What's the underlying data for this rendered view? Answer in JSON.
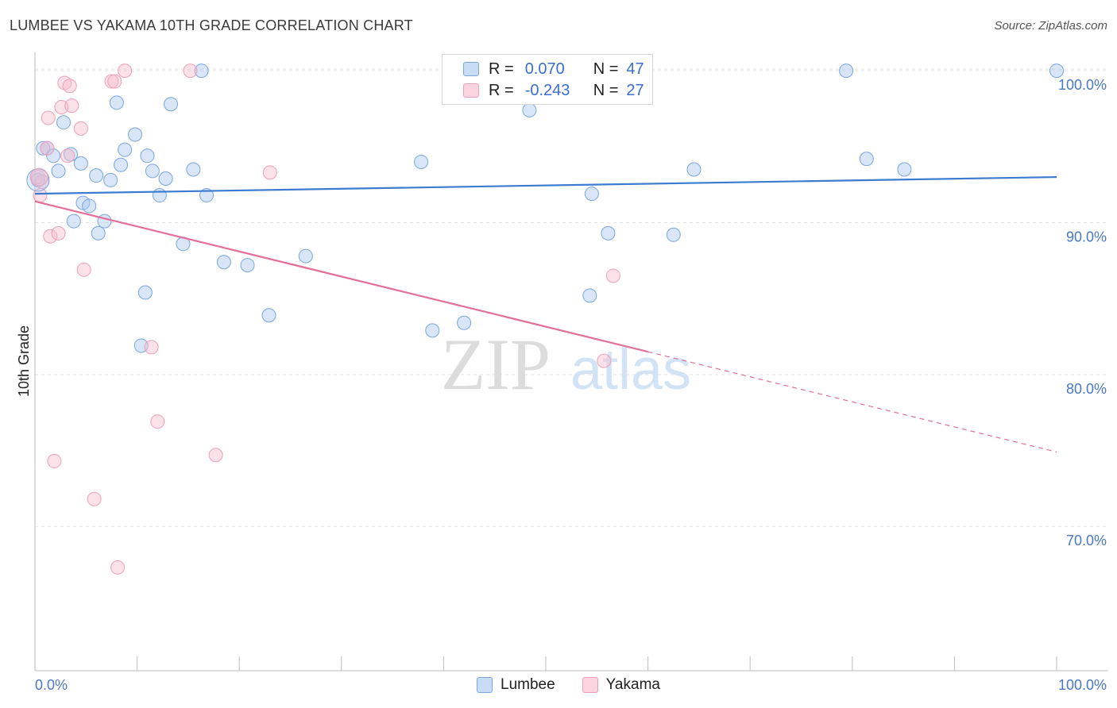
{
  "title": "LUMBEE VS YAKAMA 10TH GRADE CORRELATION CHART",
  "source": "Source: ZipAtlas.com",
  "watermark": {
    "zip": "ZIP",
    "atlas": "atlas"
  },
  "legend": {
    "rows": [
      {
        "r_label": "R =",
        "r_value": "0.070",
        "n_label": "N =",
        "n_value": "47",
        "color": "#a9c8f0"
      },
      {
        "r_label": "R =",
        "r_value": "-0.243",
        "n_label": "N =",
        "n_value": "27",
        "color": "#f7bccd"
      }
    ]
  },
  "bottom_legend": [
    {
      "label": "Lumbee",
      "color": "#a9c8f0"
    },
    {
      "label": "Yakama",
      "color": "#f7bccd"
    }
  ],
  "colors": {
    "lumbee": "#3c7bd0",
    "yakama": "#e46f99",
    "grid": "#e2e2e2",
    "tick": "#4a78c4"
  },
  "chart_data": {
    "type": "scatter",
    "title": "LUMBEE VS YAKAMA 10TH GRADE CORRELATION CHART",
    "xlabel": "",
    "ylabel": "10th Grade",
    "xlim": [
      0,
      100
    ],
    "ylim": [
      60.5,
      101
    ],
    "x_tick_labels": [
      "0.0%",
      "100.0%"
    ],
    "y_ticks": [
      70,
      80,
      90,
      100
    ],
    "y_tick_labels": [
      "70.0%",
      "80.0%",
      "90.0%",
      "100.0%"
    ],
    "grid": true,
    "legend_position": "top-center",
    "series": [
      {
        "name": "Lumbee",
        "color": "#3c7bd0",
        "trend": {
          "x": [
            0,
            100
          ],
          "y": [
            91.9,
            93.0
          ],
          "dashed_from": null
        },
        "points": [
          [
            0.3,
            92.8
          ],
          [
            0.8,
            94.9
          ],
          [
            1.2,
            94.9
          ],
          [
            1.8,
            94.4
          ],
          [
            2.3,
            93.4
          ],
          [
            2.8,
            96.6
          ],
          [
            3.5,
            94.5
          ],
          [
            3.8,
            90.1
          ],
          [
            4.5,
            93.9
          ],
          [
            4.7,
            91.3
          ],
          [
            5.3,
            91.1
          ],
          [
            6.0,
            93.1
          ],
          [
            6.2,
            89.3
          ],
          [
            6.8,
            90.1
          ],
          [
            7.4,
            92.8
          ],
          [
            8.0,
            97.9
          ],
          [
            8.4,
            93.8
          ],
          [
            8.8,
            94.8
          ],
          [
            9.8,
            95.8
          ],
          [
            10.4,
            81.9
          ],
          [
            10.8,
            85.4
          ],
          [
            11.0,
            94.4
          ],
          [
            11.5,
            93.4
          ],
          [
            12.2,
            91.8
          ],
          [
            12.8,
            92.9
          ],
          [
            13.3,
            97.8
          ],
          [
            14.5,
            88.6
          ],
          [
            15.5,
            93.5
          ],
          [
            16.3,
            100.0
          ],
          [
            16.8,
            91.8
          ],
          [
            18.5,
            87.4
          ],
          [
            20.8,
            87.2
          ],
          [
            22.9,
            83.9
          ],
          [
            26.5,
            87.8
          ],
          [
            37.8,
            94.0
          ],
          [
            38.9,
            82.9
          ],
          [
            42.0,
            83.4
          ],
          [
            48.4,
            97.4
          ],
          [
            54.3,
            85.2
          ],
          [
            54.5,
            91.9
          ],
          [
            56.1,
            89.3
          ],
          [
            62.5,
            89.2
          ],
          [
            64.5,
            93.5
          ],
          [
            79.4,
            100.0
          ],
          [
            81.4,
            94.2
          ],
          [
            85.1,
            93.5
          ],
          [
            100.0,
            100.0
          ]
        ]
      },
      {
        "name": "Yakama",
        "color": "#e46f99",
        "trend": {
          "x": [
            0,
            100
          ],
          "y": [
            91.4,
            74.9
          ],
          "dashed_from": 60.0
        },
        "points": [
          [
            0.3,
            93.0
          ],
          [
            0.5,
            91.8
          ],
          [
            0.7,
            92.7
          ],
          [
            1.2,
            94.9
          ],
          [
            1.3,
            96.9
          ],
          [
            1.5,
            89.1
          ],
          [
            1.9,
            74.3
          ],
          [
            2.3,
            89.3
          ],
          [
            2.6,
            97.6
          ],
          [
            2.9,
            99.2
          ],
          [
            3.2,
            94.4
          ],
          [
            3.4,
            99.0
          ],
          [
            3.6,
            97.7
          ],
          [
            4.5,
            96.2
          ],
          [
            4.8,
            86.9
          ],
          [
            5.8,
            71.8
          ],
          [
            7.5,
            99.3
          ],
          [
            7.8,
            99.3
          ],
          [
            8.1,
            67.3
          ],
          [
            8.8,
            100.0
          ],
          [
            11.4,
            81.8
          ],
          [
            12.0,
            76.9
          ],
          [
            15.2,
            100.0
          ],
          [
            17.7,
            74.7
          ],
          [
            23.0,
            93.3
          ],
          [
            55.7,
            80.9
          ],
          [
            56.6,
            86.5
          ]
        ]
      }
    ]
  }
}
